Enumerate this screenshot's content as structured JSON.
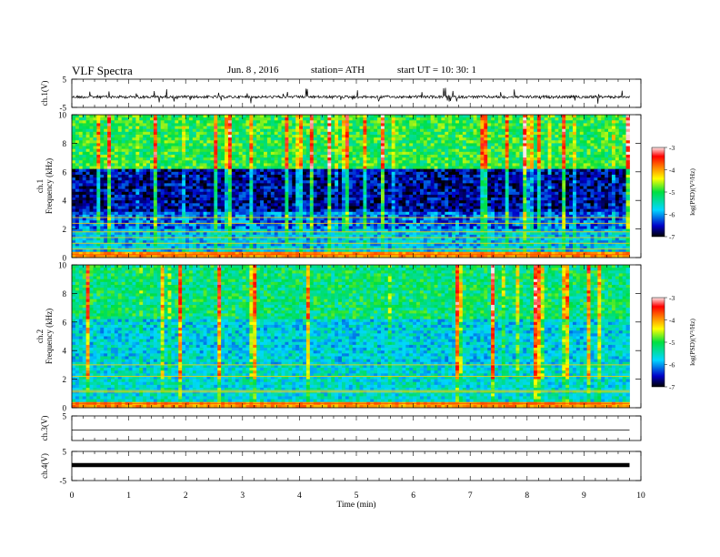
{
  "header": {
    "title": "VLF  Spectra",
    "date": "Jun. 8  , 2016",
    "station": "station= ATH",
    "start": "start  UT  =    10: 30: 1"
  },
  "colors": {
    "axis": "#000000",
    "trace": "#000000"
  },
  "chart_data": [
    {
      "type": "line",
      "name": "ch1-waveform",
      "ylabel": "ch.1(V)",
      "ylim": [
        -5,
        5
      ],
      "yticks": [
        "5",
        "-5"
      ],
      "xlim": [
        0,
        10
      ],
      "description_values": {
        "baseline": 0,
        "x_end": 9.8
      }
    },
    {
      "type": "heatmap",
      "name": "ch1-spectrogram",
      "ylabel": "ch.1\nFrequency  (kHz)",
      "ylim": [
        0,
        10
      ],
      "yticks": [
        "0",
        "2",
        "4",
        "6",
        "8",
        "10"
      ],
      "xlim": [
        0,
        10
      ],
      "colorbar": {
        "label": "log(PSD)(V²/Hz)",
        "range": [
          -7,
          -3
        ],
        "ticks": [
          "-3",
          "-4",
          "-5",
          "-6",
          "-7"
        ]
      }
    },
    {
      "type": "heatmap",
      "name": "ch2-spectrogram",
      "ylabel": "ch.2\nFrequency  (kHz)",
      "ylim": [
        0,
        10
      ],
      "yticks": [
        "0",
        "2",
        "4",
        "6",
        "8",
        "10"
      ],
      "xlim": [
        0,
        10
      ],
      "colorbar": {
        "label": "log(PSD)(V²/Hz)",
        "range": [
          -7,
          -3
        ],
        "ticks": [
          "-3",
          "-4",
          "-5",
          "-6",
          "-7"
        ]
      }
    },
    {
      "type": "line",
      "name": "ch3-waveform",
      "ylabel": "ch.3(V)",
      "ylim": [
        -5,
        5
      ],
      "yticks": [
        "5"
      ],
      "xlim": [
        0,
        10
      ]
    },
    {
      "type": "line",
      "name": "ch4-waveform",
      "ylabel": "ch.4(V)",
      "ylim": [
        -5,
        5
      ],
      "yticks": [
        "5",
        "-5"
      ],
      "xlim": [
        0,
        10
      ],
      "xlabel": "Time  (min)",
      "xticks": [
        "0",
        "1",
        "2",
        "3",
        "4",
        "5",
        "6",
        "7",
        "8",
        "9",
        "10"
      ]
    }
  ]
}
